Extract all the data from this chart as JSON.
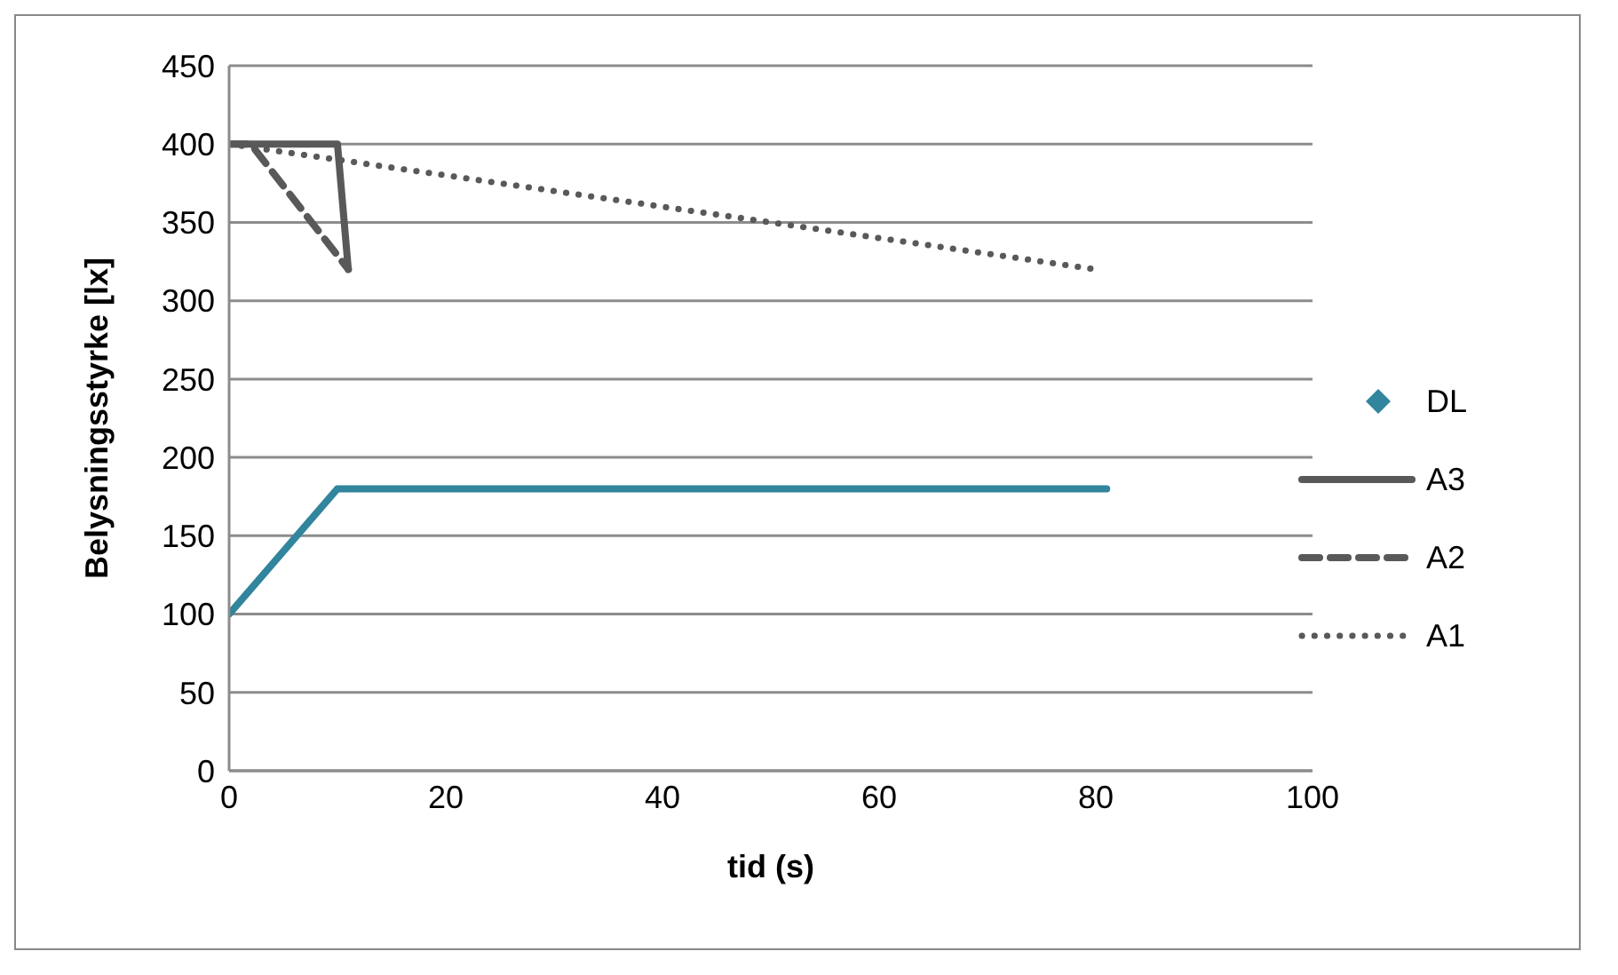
{
  "chart_data": {
    "type": "line",
    "xlabel": "tid (s)",
    "ylabel": "Belysningsstyrke [lx]",
    "xlim": [
      0,
      100
    ],
    "xticks": [
      0,
      20,
      40,
      60,
      80,
      100
    ],
    "ylim": [
      0,
      450
    ],
    "yticks": [
      0,
      50,
      100,
      150,
      200,
      250,
      300,
      350,
      400,
      450
    ],
    "grid": "y",
    "legend": "right",
    "marker": "none",
    "series": [
      {
        "name": "DL",
        "color": "#31859c",
        "x": [
          0,
          10,
          81
        ],
        "values": [
          100,
          180,
          180
        ]
      },
      {
        "name": "A3",
        "color": "#595959",
        "line_style": "solid",
        "x": [
          0,
          10,
          11
        ],
        "values": [
          400,
          400,
          320
        ]
      },
      {
        "name": "A2",
        "color": "#595959",
        "line_style": "dashed",
        "x": [
          0,
          2,
          11
        ],
        "values": [
          400,
          400,
          320
        ]
      },
      {
        "name": "A1",
        "color": "#595959",
        "line_style": "dotted",
        "x": [
          0,
          80
        ],
        "values": [
          400,
          320
        ]
      }
    ]
  }
}
